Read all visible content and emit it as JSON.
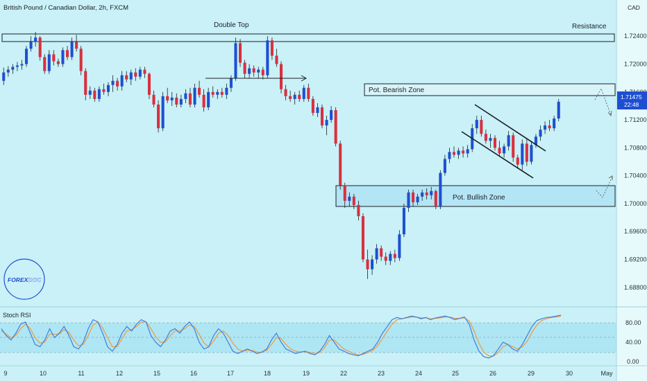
{
  "header": {
    "symbol_title": "British Pound / Canadian Dollar, 2h, FXCM",
    "currency": "CAD"
  },
  "price_tag": {
    "value": "1.71475",
    "countdown": "22:48"
  },
  "annotations": {
    "double_top": "Double Top",
    "resistance": "Resistance",
    "bearish_zone": "Pot. Bearish Zone",
    "bullish_zone": "Pot. Bullish Zone"
  },
  "logo": {
    "text_a": "FOREX",
    "text_b": "DOC"
  },
  "indicator": {
    "label": "Stoch RSI",
    "levels": [
      "80.00",
      "40.00",
      "0.00"
    ]
  },
  "colors": {
    "background": "#c9f1f7",
    "bull": "#1e4fd1",
    "bear": "#d8303f",
    "stoch_k": "#3d7fe0",
    "stoch_d": "#f29a3a",
    "axis_tag": "#1e4fd1"
  },
  "chart_data": {
    "type": "candlestick",
    "title": "British Pound / Canadian Dollar, 2h, FXCM",
    "y_axis_ticks": [
      "1.72400",
      "1.72000",
      "1.71600",
      "1.71200",
      "1.70800",
      "1.70400",
      "1.70000",
      "1.69600",
      "1.69200",
      "1.68800"
    ],
    "ylim": [
      1.6855,
      1.727
    ],
    "x_axis_ticks": [
      "9",
      "10",
      "11",
      "12",
      "15",
      "16",
      "17",
      "18",
      "19",
      "22",
      "23",
      "24",
      "25",
      "26",
      "29",
      "30",
      "May"
    ],
    "last_price": 1.71475,
    "candles_ohlc": [
      [
        1.7176,
        1.7195,
        1.717,
        1.7188
      ],
      [
        1.7188,
        1.7197,
        1.7182,
        1.7192
      ],
      [
        1.7192,
        1.72,
        1.7186,
        1.7196
      ],
      [
        1.7196,
        1.7203,
        1.719,
        1.7198
      ],
      [
        1.7198,
        1.7206,
        1.7192,
        1.72
      ],
      [
        1.72,
        1.7226,
        1.7196,
        1.7222
      ],
      [
        1.7222,
        1.724,
        1.7218,
        1.7232
      ],
      [
        1.7232,
        1.7246,
        1.7225,
        1.7238
      ],
      [
        1.7238,
        1.724,
        1.7205,
        1.721
      ],
      [
        1.721,
        1.7214,
        1.7186,
        1.719
      ],
      [
        1.719,
        1.722,
        1.7186,
        1.7214
      ],
      [
        1.7214,
        1.722,
        1.7198,
        1.7204
      ],
      [
        1.7204,
        1.7208,
        1.7196,
        1.72
      ],
      [
        1.72,
        1.7224,
        1.7196,
        1.722
      ],
      [
        1.722,
        1.7226,
        1.7206,
        1.721
      ],
      [
        1.721,
        1.7238,
        1.7206,
        1.7232
      ],
      [
        1.7232,
        1.7242,
        1.7218,
        1.7222
      ],
      [
        1.7222,
        1.7226,
        1.7184,
        1.719
      ],
      [
        1.719,
        1.7194,
        1.7148,
        1.7156
      ],
      [
        1.7156,
        1.7168,
        1.715,
        1.7162
      ],
      [
        1.7162,
        1.7166,
        1.7146,
        1.715
      ],
      [
        1.715,
        1.7168,
        1.7146,
        1.7164
      ],
      [
        1.7164,
        1.7172,
        1.7156,
        1.716
      ],
      [
        1.716,
        1.7174,
        1.7154,
        1.717
      ],
      [
        1.717,
        1.7184,
        1.716,
        1.7176
      ],
      [
        1.7176,
        1.718,
        1.7162,
        1.7168
      ],
      [
        1.7168,
        1.719,
        1.7162,
        1.7184
      ],
      [
        1.7184,
        1.719,
        1.7174,
        1.7178
      ],
      [
        1.7178,
        1.7192,
        1.717,
        1.7188
      ],
      [
        1.7188,
        1.7194,
        1.7176,
        1.7182
      ],
      [
        1.7182,
        1.7196,
        1.7178,
        1.7192
      ],
      [
        1.7192,
        1.7196,
        1.718,
        1.7186
      ],
      [
        1.7186,
        1.7188,
        1.715,
        1.7156
      ],
      [
        1.7156,
        1.7162,
        1.7138,
        1.7142
      ],
      [
        1.7142,
        1.7148,
        1.7102,
        1.7108
      ],
      [
        1.7108,
        1.716,
        1.7104,
        1.7154
      ],
      [
        1.7154,
        1.7166,
        1.7144,
        1.7148
      ],
      [
        1.7148,
        1.716,
        1.714,
        1.7152
      ],
      [
        1.7152,
        1.7158,
        1.7138,
        1.7142
      ],
      [
        1.7142,
        1.7156,
        1.7138,
        1.715
      ],
      [
        1.715,
        1.7164,
        1.7144,
        1.7158
      ],
      [
        1.7158,
        1.7166,
        1.7138,
        1.7142
      ],
      [
        1.7142,
        1.7172,
        1.7138,
        1.7166
      ],
      [
        1.7166,
        1.7176,
        1.7152,
        1.7156
      ],
      [
        1.7156,
        1.7164,
        1.7132,
        1.7138
      ],
      [
        1.7138,
        1.7166,
        1.7134,
        1.716
      ],
      [
        1.716,
        1.7168,
        1.7152,
        1.7156
      ],
      [
        1.7156,
        1.7164,
        1.715,
        1.716
      ],
      [
        1.716,
        1.7166,
        1.7152,
        1.7156
      ],
      [
        1.7156,
        1.7172,
        1.715,
        1.7166
      ],
      [
        1.7166,
        1.7184,
        1.716,
        1.718
      ],
      [
        1.718,
        1.7238,
        1.7176,
        1.723
      ],
      [
        1.723,
        1.7236,
        1.7196,
        1.7202
      ],
      [
        1.7202,
        1.7206,
        1.718,
        1.7186
      ],
      [
        1.7186,
        1.72,
        1.718,
        1.7194
      ],
      [
        1.7194,
        1.7198,
        1.7182,
        1.7188
      ],
      [
        1.7188,
        1.7196,
        1.718,
        1.7192
      ],
      [
        1.7192,
        1.7196,
        1.7178,
        1.7184
      ],
      [
        1.7184,
        1.724,
        1.718,
        1.7234
      ],
      [
        1.7234,
        1.7238,
        1.7206,
        1.7212
      ],
      [
        1.7212,
        1.7222,
        1.7196,
        1.72
      ],
      [
        1.72,
        1.7204,
        1.7158,
        1.7164
      ],
      [
        1.7164,
        1.717,
        1.7148,
        1.7154
      ],
      [
        1.7154,
        1.7162,
        1.7146,
        1.715
      ],
      [
        1.715,
        1.716,
        1.7142,
        1.7156
      ],
      [
        1.7156,
        1.7162,
        1.7146,
        1.715
      ],
      [
        1.715,
        1.717,
        1.7146,
        1.7166
      ],
      [
        1.7166,
        1.7172,
        1.7146,
        1.715
      ],
      [
        1.715,
        1.7154,
        1.7126,
        1.713
      ],
      [
        1.713,
        1.7144,
        1.7124,
        1.7138
      ],
      [
        1.7138,
        1.7142,
        1.7108,
        1.7112
      ],
      [
        1.7112,
        1.7126,
        1.7098,
        1.712
      ],
      [
        1.712,
        1.714,
        1.7116,
        1.7134
      ],
      [
        1.7134,
        1.7138,
        1.7082,
        1.7086
      ],
      [
        1.7086,
        1.709,
        1.702,
        1.7026
      ],
      [
        1.7026,
        1.703,
        1.6994,
        1.7004
      ],
      [
        1.7004,
        1.7016,
        1.6996,
        1.701
      ],
      [
        1.701,
        1.7014,
        1.6992,
        1.6998
      ],
      [
        1.6998,
        1.7004,
        1.6976,
        1.6982
      ],
      [
        1.6982,
        1.6986,
        1.6916,
        1.692
      ],
      [
        1.692,
        1.6934,
        1.6892,
        1.6906
      ],
      [
        1.6906,
        1.6926,
        1.6898,
        1.692
      ],
      [
        1.692,
        1.6942,
        1.6914,
        1.6936
      ],
      [
        1.6936,
        1.694,
        1.6918,
        1.6924
      ],
      [
        1.6924,
        1.693,
        1.6912,
        1.6918
      ],
      [
        1.6918,
        1.6932,
        1.6912,
        1.6928
      ],
      [
        1.6928,
        1.6934,
        1.6916,
        1.6922
      ],
      [
        1.6922,
        1.6962,
        1.6918,
        1.6956
      ],
      [
        1.6956,
        1.7,
        1.6952,
        1.6994
      ],
      [
        1.6994,
        1.702,
        1.6988,
        1.7016
      ],
      [
        1.7016,
        1.702,
        1.6996,
        1.7002
      ],
      [
        1.7002,
        1.7014,
        1.6998,
        1.701
      ],
      [
        1.701,
        1.702,
        1.7004,
        1.7016
      ],
      [
        1.7016,
        1.7022,
        1.7006,
        1.7012
      ],
      [
        1.7012,
        1.7024,
        1.7006,
        1.7018
      ],
      [
        1.7018,
        1.702,
        1.6992,
        1.6996
      ],
      [
        1.6996,
        1.7048,
        1.6992,
        1.7044
      ],
      [
        1.7044,
        1.707,
        1.704,
        1.7064
      ],
      [
        1.7064,
        1.708,
        1.7058,
        1.7074
      ],
      [
        1.7074,
        1.7082,
        1.7066,
        1.707
      ],
      [
        1.707,
        1.708,
        1.7064,
        1.7076
      ],
      [
        1.7076,
        1.7082,
        1.7066,
        1.7072
      ],
      [
        1.7072,
        1.7084,
        1.7066,
        1.7078
      ],
      [
        1.7078,
        1.7114,
        1.7074,
        1.7108
      ],
      [
        1.7108,
        1.7126,
        1.71,
        1.712
      ],
      [
        1.712,
        1.7126,
        1.7096,
        1.71
      ],
      [
        1.71,
        1.7106,
        1.7086,
        1.709
      ],
      [
        1.709,
        1.71,
        1.708,
        1.7094
      ],
      [
        1.7094,
        1.7098,
        1.7076,
        1.708
      ],
      [
        1.708,
        1.709,
        1.7068,
        1.7072
      ],
      [
        1.7072,
        1.7086,
        1.7066,
        1.7082
      ],
      [
        1.7082,
        1.7104,
        1.7076,
        1.7098
      ],
      [
        1.7098,
        1.7102,
        1.706,
        1.7066
      ],
      [
        1.7066,
        1.707,
        1.705,
        1.7056
      ],
      [
        1.7056,
        1.7092,
        1.7048,
        1.7086
      ],
      [
        1.7086,
        1.7094,
        1.7054,
        1.706
      ],
      [
        1.706,
        1.709,
        1.7056,
        1.7084
      ],
      [
        1.7084,
        1.71,
        1.708,
        1.7096
      ],
      [
        1.7096,
        1.7112,
        1.709,
        1.7106
      ],
      [
        1.7106,
        1.7118,
        1.71,
        1.7112
      ],
      [
        1.7112,
        1.712,
        1.7104,
        1.7108
      ],
      [
        1.7108,
        1.7126,
        1.7104,
        1.7122
      ],
      [
        1.7122,
        1.715,
        1.7118,
        1.7146
      ]
    ],
    "stoch_rsi": {
      "k": [
        70,
        55,
        45,
        60,
        80,
        85,
        60,
        35,
        30,
        45,
        70,
        50,
        60,
        75,
        55,
        30,
        25,
        40,
        70,
        90,
        85,
        60,
        30,
        20,
        35,
        60,
        75,
        65,
        80,
        90,
        85,
        55,
        40,
        30,
        45,
        65,
        70,
        60,
        75,
        85,
        70,
        40,
        25,
        30,
        55,
        70,
        60,
        40,
        20,
        15,
        20,
        25,
        20,
        15,
        18,
        25,
        45,
        60,
        40,
        25,
        20,
        15,
        18,
        20,
        15,
        12,
        20,
        35,
        55,
        40,
        25,
        20,
        15,
        12,
        10,
        15,
        20,
        25,
        40,
        60,
        75,
        90,
        95,
        92,
        95,
        98,
        96,
        92,
        95,
        90,
        94,
        96,
        98,
        95,
        90,
        93,
        96,
        80,
        45,
        20,
        8,
        5,
        10,
        25,
        40,
        35,
        25,
        20,
        35,
        55,
        75,
        88,
        92,
        95,
        96,
        98,
        100
      ],
      "d": [
        65,
        58,
        50,
        55,
        70,
        80,
        70,
        50,
        38,
        40,
        58,
        58,
        58,
        68,
        62,
        45,
        32,
        35,
        55,
        78,
        85,
        72,
        50,
        30,
        30,
        48,
        65,
        68,
        75,
        85,
        85,
        70,
        52,
        40,
        40,
        55,
        65,
        65,
        70,
        78,
        75,
        58,
        38,
        30,
        42,
        60,
        65,
        55,
        38,
        25,
        20,
        22,
        22,
        18,
        18,
        22,
        35,
        50,
        48,
        35,
        25,
        20,
        18,
        19,
        17,
        15,
        17,
        28,
        45,
        45,
        35,
        25,
        20,
        15,
        12,
        13,
        17,
        22,
        32,
        48,
        65,
        80,
        90,
        92,
        94,
        96,
        96,
        94,
        94,
        92,
        93,
        94,
        96,
        96,
        93,
        93,
        94,
        87,
        65,
        38,
        18,
        10,
        9,
        17,
        30,
        35,
        30,
        25,
        30,
        42,
        62,
        78,
        88,
        92,
        95,
        96,
        98
      ]
    }
  }
}
